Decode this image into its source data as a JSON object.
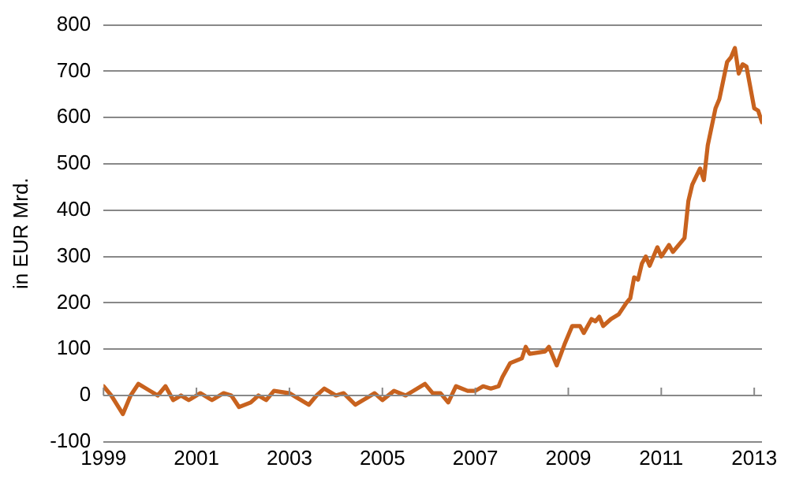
{
  "chart_data": {
    "type": "line",
    "ylabel": "in EUR Mrd.",
    "grid": "y",
    "legend": false,
    "marker": "none",
    "line_style": "solid",
    "xlim": [
      "1999-01",
      "2013-03"
    ],
    "xticks": [
      "1999",
      "2001",
      "2003",
      "2005",
      "2007",
      "2009",
      "2011",
      "2013"
    ],
    "ylim": [
      -100,
      800
    ],
    "yticks": [
      -100,
      0,
      100,
      200,
      300,
      400,
      500,
      600,
      700,
      800
    ],
    "x": [
      "1999-01",
      "1999-03",
      "1999-06",
      "1999-08",
      "1999-10",
      "2000-01",
      "2000-03",
      "2000-05",
      "2000-07",
      "2000-09",
      "2000-11",
      "2001-02",
      "2001-05",
      "2001-08",
      "2001-10",
      "2001-12",
      "2002-03",
      "2002-05",
      "2002-07",
      "2002-09",
      "2003-01",
      "2003-03",
      "2003-06",
      "2003-08",
      "2003-10",
      "2004-01",
      "2004-03",
      "2004-06",
      "2004-09",
      "2004-11",
      "2005-01",
      "2005-04",
      "2005-07",
      "2005-09",
      "2005-12",
      "2006-02",
      "2006-04",
      "2006-06",
      "2006-08",
      "2006-11",
      "2007-01",
      "2007-03",
      "2007-05",
      "2007-07",
      "2007-08",
      "2007-10",
      "2008-01",
      "2008-02",
      "2008-03",
      "2008-07",
      "2008-08",
      "2008-10",
      "2008-12",
      "2009-02",
      "2009-04",
      "2009-05",
      "2009-07",
      "2009-08",
      "2009-09",
      "2009-10",
      "2009-12",
      "2010-02",
      "2010-04",
      "2010-05",
      "2010-06",
      "2010-07",
      "2010-08",
      "2010-09",
      "2010-10",
      "2010-12",
      "2011-01",
      "2011-03",
      "2011-04",
      "2011-07",
      "2011-08",
      "2011-09",
      "2011-11",
      "2011-12",
      "2012-01",
      "2012-03",
      "2012-04",
      "2012-06",
      "2012-07",
      "2012-08",
      "2012-09",
      "2012-10",
      "2012-11",
      "2013-01",
      "2013-02",
      "2013-03"
    ],
    "series": [
      {
        "color": "#c8621e",
        "values": [
          20,
          0,
          -40,
          0,
          25,
          10,
          0,
          20,
          -10,
          0,
          -10,
          5,
          -10,
          5,
          0,
          -25,
          -15,
          0,
          -10,
          10,
          5,
          -5,
          -20,
          0,
          15,
          0,
          5,
          -20,
          -5,
          5,
          -10,
          10,
          0,
          10,
          25,
          5,
          5,
          -15,
          20,
          10,
          10,
          20,
          15,
          20,
          40,
          70,
          80,
          105,
          90,
          95,
          105,
          65,
          110,
          150,
          150,
          135,
          165,
          160,
          170,
          150,
          165,
          175,
          200,
          210,
          255,
          250,
          285,
          300,
          280,
          320,
          300,
          325,
          310,
          340,
          420,
          455,
          490,
          465,
          540,
          620,
          640,
          720,
          730,
          750,
          695,
          715,
          710,
          620,
          615,
          590
        ]
      }
    ]
  }
}
